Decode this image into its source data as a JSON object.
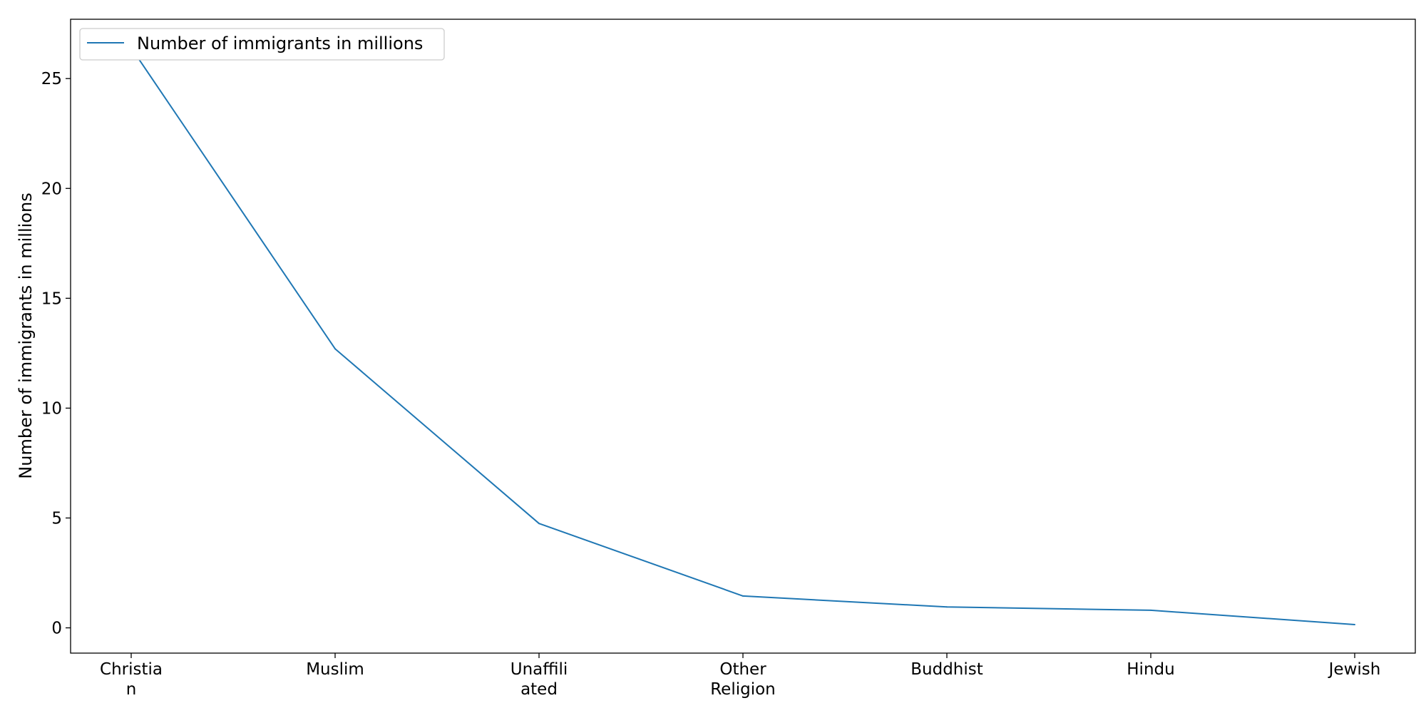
{
  "chart_data": {
    "type": "line",
    "categories": [
      "Christia\nn",
      "Muslim",
      "Unaffili\nated",
      "Other\nReligion",
      "Buddhist",
      "Hindu",
      "Jewish"
    ],
    "series": [
      {
        "name": "Number of immigrants in millions",
        "values": [
          26.4,
          12.7,
          4.75,
          1.45,
          0.95,
          0.8,
          0.15
        ],
        "color": "#1f77b4"
      }
    ],
    "xlabel": "",
    "ylabel": "Number of immigrants in millions",
    "ylim": [
      -1.15,
      27.7
    ],
    "yticks": [
      0,
      5,
      10,
      15,
      20,
      25
    ],
    "grid": false,
    "legend_position": "upper-left"
  }
}
